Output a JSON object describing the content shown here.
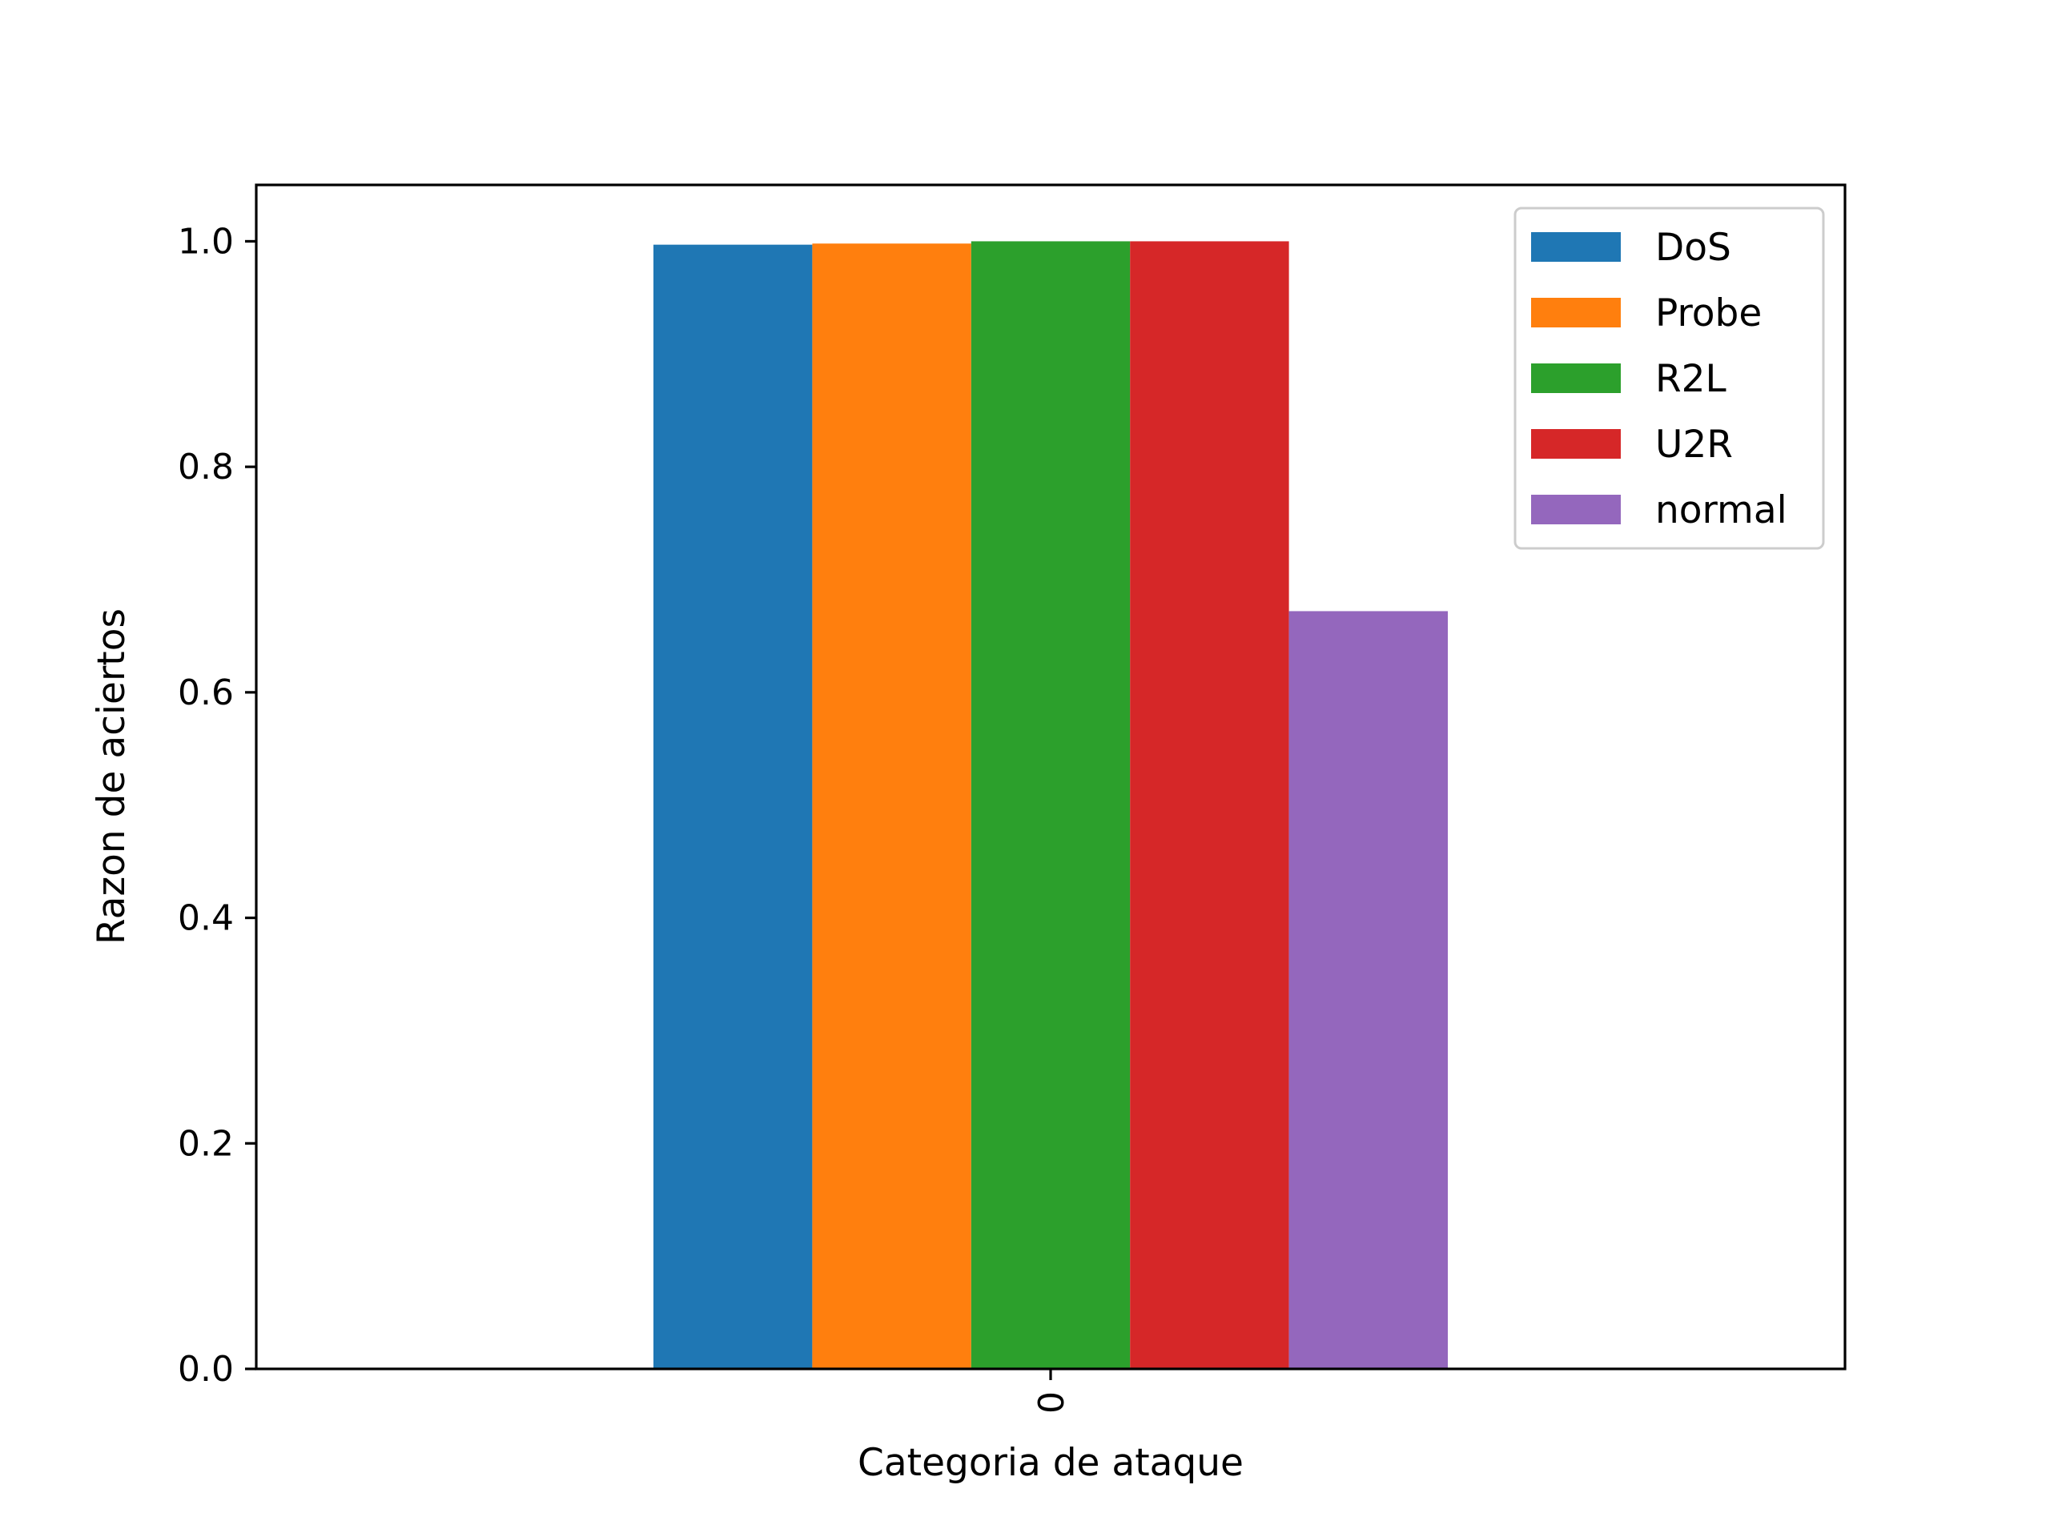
{
  "chart_data": {
    "type": "bar",
    "categories": [
      "0"
    ],
    "series": [
      {
        "name": "DoS",
        "values": [
          0.997
        ],
        "color": "#1f77b4"
      },
      {
        "name": "Probe",
        "values": [
          0.998
        ],
        "color": "#ff7f0e"
      },
      {
        "name": "R2L",
        "values": [
          1.0
        ],
        "color": "#2ca02c"
      },
      {
        "name": "U2R",
        "values": [
          1.0
        ],
        "color": "#d62728"
      },
      {
        "name": "normal",
        "values": [
          0.672
        ],
        "color": "#9467bd"
      }
    ],
    "xlabel": "Categoria de ataque",
    "ylabel": "Razon de aciertos",
    "ylim": [
      0,
      1.05
    ],
    "yticks": [
      "0.0",
      "0.2",
      "0.4",
      "0.6",
      "0.8",
      "1.0"
    ],
    "ytick_values": [
      0,
      0.2,
      0.4,
      0.6,
      0.8,
      1.0
    ],
    "xtick_rotation": 90,
    "grid": false,
    "legend_position": "top-right"
  }
}
